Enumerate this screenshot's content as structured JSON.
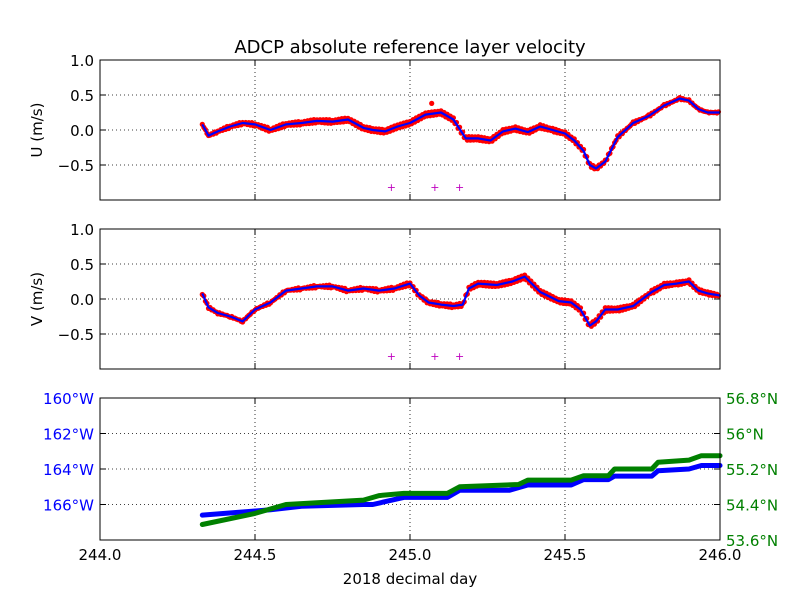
{
  "figure": {
    "title": "ADCP absolute reference layer velocity",
    "xlabel": "2018 decimal day",
    "xlim": [
      244.0,
      246.0
    ],
    "x_ticks": [
      "244.0",
      "244.5",
      "245.0",
      "245.5",
      "246.0"
    ],
    "colors": {
      "raw": "#ff0000",
      "smoothed": "#0000ff",
      "flag": "#bf00bf",
      "longitude": "#0000ff",
      "latitude": "#008000",
      "grid": "#000000"
    }
  },
  "chart_data": [
    {
      "type": "line",
      "ylabel": "U (m/s)",
      "ylim": [
        -1.0,
        1.0
      ],
      "y_ticks": [
        "1.0",
        "0.5",
        "0.0",
        "−0.5"
      ],
      "y_tick_values": [
        1.0,
        0.5,
        0.0,
        -0.5
      ],
      "grid": true,
      "series": [
        {
          "kind": "smoothed line with raw points",
          "x": [
            244.33,
            244.35,
            244.38,
            244.42,
            244.46,
            244.5,
            244.55,
            244.6,
            244.65,
            244.7,
            244.75,
            244.8,
            244.85,
            244.88,
            244.92,
            244.96,
            245.0,
            245.05,
            245.1,
            245.14,
            245.18,
            245.22,
            245.26,
            245.3,
            245.34,
            245.38,
            245.42,
            245.46,
            245.5,
            245.53,
            245.56,
            245.58,
            245.6,
            245.63,
            245.67,
            245.72,
            245.77,
            245.82,
            245.87,
            245.9,
            245.93,
            245.96,
            246.0
          ],
          "y": [
            0.08,
            -0.08,
            -0.02,
            0.05,
            0.1,
            0.08,
            0.0,
            0.08,
            0.1,
            0.13,
            0.12,
            0.15,
            0.03,
            0.0,
            -0.02,
            0.05,
            0.1,
            0.22,
            0.25,
            0.15,
            -0.12,
            -0.12,
            -0.15,
            -0.02,
            0.02,
            -0.03,
            0.05,
            0.0,
            -0.05,
            -0.15,
            -0.3,
            -0.5,
            -0.55,
            -0.45,
            -0.1,
            0.1,
            0.2,
            0.35,
            0.45,
            0.42,
            0.3,
            0.25,
            0.25
          ]
        }
      ],
      "outliers": [
        {
          "x": 245.07,
          "y": 0.38
        }
      ],
      "flags": [
        {
          "x": 244.94,
          "symbol": "+"
        },
        {
          "x": 245.08,
          "symbol": "+"
        },
        {
          "x": 245.16,
          "symbol": "+"
        }
      ]
    },
    {
      "type": "line",
      "ylabel": "V (m/s)",
      "ylim": [
        -1.0,
        1.0
      ],
      "y_ticks": [
        "1.0",
        "0.5",
        "0.0",
        "−0.5"
      ],
      "y_tick_values": [
        1.0,
        0.5,
        0.0,
        -0.5
      ],
      "grid": true,
      "series": [
        {
          "kind": "smoothed line with raw points",
          "x": [
            244.33,
            244.35,
            244.38,
            244.42,
            244.46,
            244.5,
            244.55,
            244.6,
            244.65,
            244.7,
            244.75,
            244.8,
            244.85,
            244.9,
            244.95,
            245.0,
            245.03,
            245.06,
            245.1,
            245.14,
            245.17,
            245.19,
            245.22,
            245.28,
            245.33,
            245.37,
            245.42,
            245.48,
            245.52,
            245.55,
            245.58,
            245.6,
            245.63,
            245.67,
            245.72,
            245.78,
            245.82,
            245.86,
            245.9,
            245.93,
            245.96,
            246.0
          ],
          "y": [
            0.08,
            -0.12,
            -0.2,
            -0.25,
            -0.32,
            -0.15,
            -0.05,
            0.12,
            0.15,
            0.18,
            0.18,
            0.12,
            0.15,
            0.12,
            0.15,
            0.22,
            0.05,
            -0.05,
            -0.08,
            -0.1,
            -0.08,
            0.15,
            0.22,
            0.2,
            0.25,
            0.32,
            0.1,
            -0.03,
            -0.05,
            -0.15,
            -0.38,
            -0.32,
            -0.15,
            -0.15,
            -0.1,
            0.1,
            0.2,
            0.22,
            0.25,
            0.12,
            0.08,
            0.05
          ]
        }
      ],
      "outliers": [],
      "flags": [
        {
          "x": 244.94,
          "symbol": "+"
        },
        {
          "x": 245.08,
          "symbol": "+"
        },
        {
          "x": 245.16,
          "symbol": "+"
        }
      ]
    },
    {
      "type": "line",
      "left_axis": {
        "ylim": [
          -168.0,
          -160.0
        ],
        "y_ticks": [
          "160°W",
          "162°W",
          "164°W",
          "166°W"
        ],
        "y_tick_values": [
          -160,
          -162,
          -164,
          -166
        ]
      },
      "right_axis": {
        "ylim": [
          53.6,
          56.8
        ],
        "y_ticks": [
          "56.8°N",
          "56°N",
          "55.2°N",
          "54.4°N",
          "53.6°N"
        ],
        "y_tick_values": [
          56.8,
          56.0,
          55.2,
          54.4,
          53.6
        ]
      },
      "grid": true,
      "series": [
        {
          "axis": "left",
          "quantity": "longitude",
          "x": [
            244.33,
            244.55,
            244.65,
            244.85,
            244.88,
            244.98,
            245.12,
            245.16,
            245.32,
            245.38,
            245.52,
            245.56,
            245.64,
            245.66,
            245.78,
            245.8,
            245.9,
            245.94,
            246.0
          ],
          "y": [
            -166.6,
            -166.3,
            -166.1,
            -166.0,
            -166.0,
            -165.6,
            -165.6,
            -165.2,
            -165.2,
            -164.9,
            -164.9,
            -164.6,
            -164.6,
            -164.4,
            -164.4,
            -164.1,
            -164.0,
            -163.8,
            -163.8
          ]
        },
        {
          "axis": "right",
          "quantity": "latitude",
          "x": [
            244.33,
            244.5,
            244.6,
            244.85,
            244.9,
            244.98,
            245.12,
            245.16,
            245.35,
            245.38,
            245.52,
            245.56,
            245.64,
            245.66,
            245.78,
            245.8,
            245.9,
            245.94,
            246.0
          ],
          "y": [
            53.95,
            54.2,
            54.4,
            54.5,
            54.6,
            54.65,
            54.65,
            54.8,
            54.85,
            54.95,
            54.95,
            55.05,
            55.05,
            55.2,
            55.2,
            55.35,
            55.4,
            55.5,
            55.5
          ]
        }
      ]
    }
  ]
}
